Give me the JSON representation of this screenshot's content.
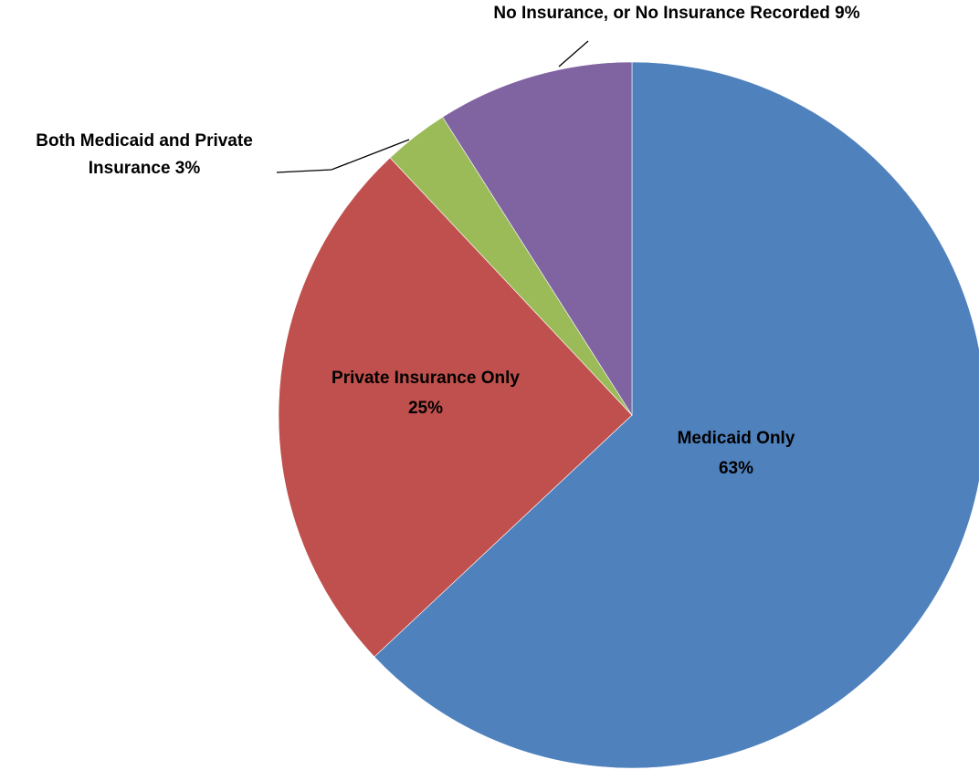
{
  "chart_data": {
    "type": "pie",
    "title": "",
    "slices": [
      {
        "label_lines": [
          "Medicaid Only"
        ],
        "value": 63,
        "value_text": "63%",
        "color": "#4F81BD",
        "label_position": "inside"
      },
      {
        "label_lines": [
          "Private Insurance Only"
        ],
        "value": 25,
        "value_text": "25%",
        "color": "#C0504D",
        "label_position": "inside"
      },
      {
        "label_lines": [
          "Both Medicaid and Private",
          "Insurance"
        ],
        "value": 3,
        "value_text": "3%",
        "color": "#9BBB59",
        "label_position": "outside-left"
      },
      {
        "label_lines": [
          "No Insurance, or No Insurance Recorded"
        ],
        "value": 9,
        "value_text": "9%",
        "color": "#8064A2",
        "label_position": "outside-top"
      }
    ],
    "start_angle": "12 o'clock",
    "direction": "clockwise",
    "legend": "none"
  }
}
